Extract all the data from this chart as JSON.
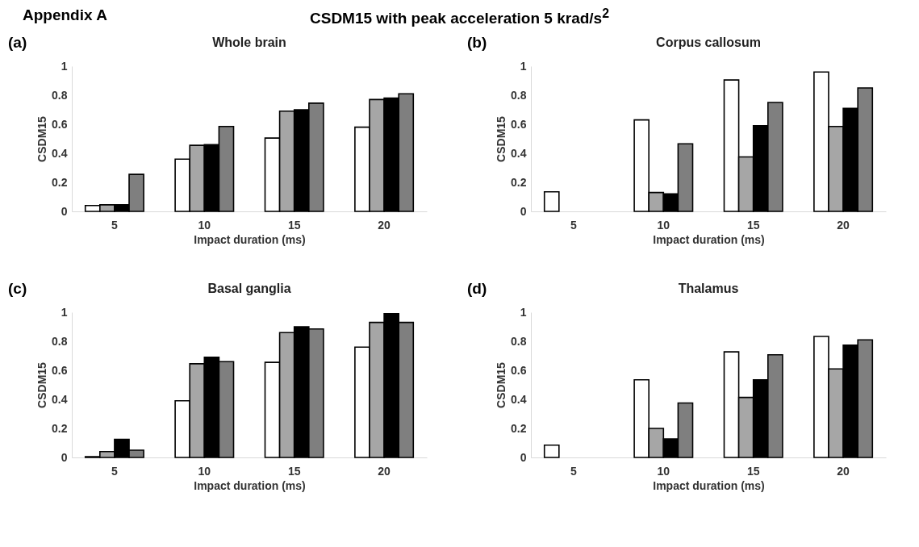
{
  "chart_data": [
    {
      "type": "bar",
      "title": "Whole brain",
      "xlabel": "Impact duration (ms)",
      "ylabel": "CSDM15",
      "annotations": [
        "Appendix A",
        "CSDM15 with peak acceleration 5 krad/s$^{2}$",
        "(a)"
      ],
      "categories": [
        "5",
        "10",
        "15",
        "20"
      ],
      "ylim": [
        0,
        1
      ],
      "yticks": [
        0,
        0.2,
        0.4,
        0.6,
        0.8,
        1
      ],
      "grid": false,
      "legend": false,
      "series": [
        {
          "color": "#ffffff",
          "values": [
            0.04,
            0.36,
            0.505,
            0.58
          ]
        },
        {
          "color": "#a6a6a6",
          "values": [
            0.045,
            0.455,
            0.69,
            0.77
          ]
        },
        {
          "color": "#000000",
          "values": [
            0.045,
            0.46,
            0.7,
            0.78
          ]
        },
        {
          "color": "#7f7f7f",
          "values": [
            0.255,
            0.585,
            0.745,
            0.81
          ]
        }
      ]
    },
    {
      "type": "bar",
      "title": "Corpus callosum",
      "xlabel": "Impact duration (ms)",
      "ylabel": "CSDM15",
      "annotations": [
        "(b)"
      ],
      "categories": [
        "5",
        "10",
        "15",
        "20"
      ],
      "ylim": [
        0,
        1
      ],
      "yticks": [
        0,
        0.2,
        0.4,
        0.6,
        0.8,
        1
      ],
      "grid": false,
      "legend": false,
      "series": [
        {
          "color": "#ffffff",
          "values": [
            0.135,
            0.63,
            0.905,
            0.96
          ]
        },
        {
          "color": "#a6a6a6",
          "values": [
            null,
            0.13,
            0.375,
            0.585
          ]
        },
        {
          "color": "#000000",
          "values": [
            null,
            0.12,
            0.59,
            0.71
          ]
        },
        {
          "color": "#7f7f7f",
          "values": [
            null,
            0.465,
            0.75,
            0.85
          ]
        }
      ]
    },
    {
      "type": "bar",
      "title": "Basal ganglia",
      "xlabel": "Impact duration (ms)",
      "ylabel": "CSDM15",
      "annotations": [
        "(c)"
      ],
      "categories": [
        "5",
        "10",
        "15",
        "20"
      ],
      "ylim": [
        0,
        1
      ],
      "yticks": [
        0,
        0.2,
        0.4,
        0.6,
        0.8,
        1
      ],
      "grid": false,
      "legend": false,
      "series": [
        {
          "color": "#ffffff",
          "values": [
            0.005,
            0.39,
            0.655,
            0.76
          ]
        },
        {
          "color": "#a6a6a6",
          "values": [
            0.04,
            0.645,
            0.86,
            0.93
          ]
        },
        {
          "color": "#000000",
          "values": [
            0.125,
            0.69,
            0.9,
            0.99
          ]
        },
        {
          "color": "#7f7f7f",
          "values": [
            0.05,
            0.66,
            0.885,
            0.93
          ]
        }
      ]
    },
    {
      "type": "bar",
      "title": "Thalamus",
      "xlabel": "Impact duration (ms)",
      "ylabel": "CSDM15",
      "annotations": [
        "(d)"
      ],
      "categories": [
        "5",
        "10",
        "15",
        "20"
      ],
      "ylim": [
        0,
        1
      ],
      "yticks": [
        0,
        0.2,
        0.4,
        0.6,
        0.8,
        1
      ],
      "grid": false,
      "legend": false,
      "series": [
        {
          "color": "#ffffff",
          "values": [
            0.085,
            0.535,
            0.727,
            0.833
          ]
        },
        {
          "color": "#a6a6a6",
          "values": [
            null,
            0.2,
            0.413,
            0.61
          ]
        },
        {
          "color": "#000000",
          "values": [
            null,
            0.127,
            0.535,
            0.773
          ]
        },
        {
          "color": "#7f7f7f",
          "values": [
            null,
            0.375,
            0.707,
            0.81
          ]
        }
      ]
    }
  ]
}
